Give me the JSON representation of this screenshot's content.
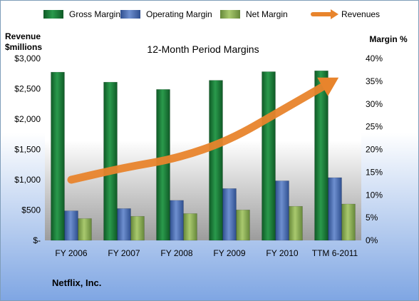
{
  "company": "Netflix, Inc.",
  "chart_data": {
    "type": "bar",
    "title": "12-Month Period Margins",
    "categories": [
      "FY 2006",
      "FY 2007",
      "FY 2008",
      "FY 2009",
      "FY 2010",
      "TTM 6-2011"
    ],
    "series": [
      {
        "name": "Gross Margin",
        "axis": "right",
        "color": "#1f7a3a",
        "values": [
          37.0,
          34.8,
          33.2,
          35.2,
          37.1,
          37.3
        ]
      },
      {
        "name": "Operating Margin",
        "axis": "right",
        "color": "#4a6fb5",
        "values": [
          6.5,
          7.0,
          8.8,
          11.4,
          13.1,
          13.8
        ]
      },
      {
        "name": "Net Margin",
        "axis": "right",
        "color": "#8cb04e",
        "values": [
          4.8,
          5.3,
          5.9,
          6.7,
          7.5,
          8.0
        ]
      },
      {
        "name": "Revenues",
        "type": "line",
        "axis": "left",
        "color": "#e8842c",
        "values": [
          1000,
          1200,
          1350,
          1650,
          2150,
          2650
        ]
      }
    ],
    "left_axis": {
      "label_line1": "Revenue",
      "label_line2": "$millions",
      "range": [
        0,
        3000
      ],
      "ticks": [
        "$-",
        "$500",
        "$1,000",
        "$1,500",
        "$2,000",
        "$2,500",
        "$3,000"
      ]
    },
    "right_axis": {
      "label": "Margin %",
      "range": [
        0,
        40
      ],
      "ticks": [
        "0%",
        "5%",
        "10%",
        "15%",
        "20%",
        "25%",
        "30%",
        "35%",
        "40%"
      ]
    },
    "legend_position": "top",
    "grid": false
  }
}
